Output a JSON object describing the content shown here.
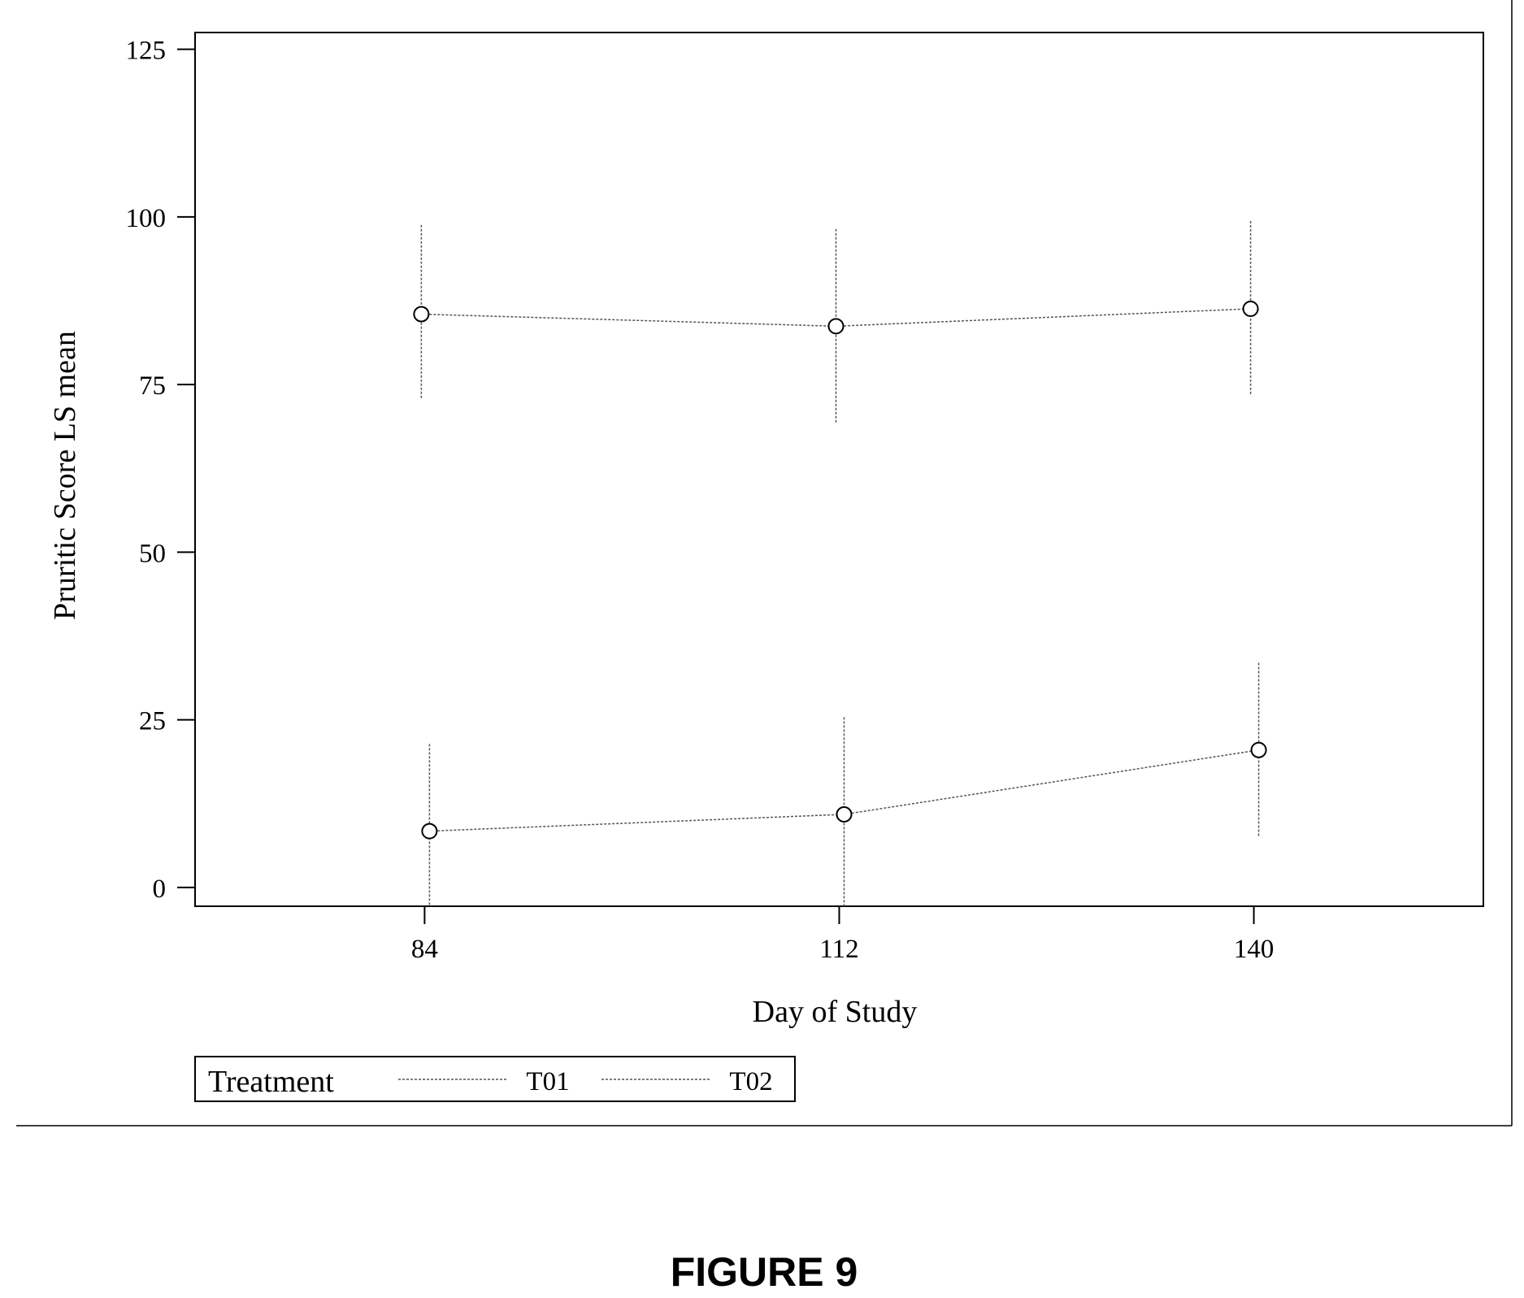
{
  "chart_data": {
    "type": "line",
    "figure_caption": "FIGURE 9",
    "xlabel": "Day of Study",
    "ylabel": "Pruritic Score LS mean",
    "x_ticks": [
      84,
      112,
      140
    ],
    "y_ticks": [
      0,
      25,
      50,
      75,
      100,
      125
    ],
    "xlim": [
      68.5,
      155.5
    ],
    "ylim": [
      -2.8,
      127.5
    ],
    "grid": false,
    "legend": {
      "title": "Treatment",
      "position": "bottom-left",
      "entries": [
        "T01",
        "T02"
      ]
    },
    "series": [
      {
        "name": "T01",
        "x": [
          84,
          112,
          140
        ],
        "values": [
          85.5,
          83.7,
          86.3
        ],
        "lower": [
          72.8,
          69.3,
          73.3
        ],
        "upper": [
          98.8,
          98.2,
          99.4
        ]
      },
      {
        "name": "T02",
        "x": [
          84,
          112,
          140
        ],
        "values": [
          8.4,
          10.9,
          20.5
        ],
        "lower": [
          -2.8,
          -2.8,
          7.6
        ],
        "upper": [
          21.4,
          25.4,
          33.5
        ]
      }
    ],
    "colors": {
      "line": "#555555",
      "axis": "#000000",
      "marker_fill": "#ffffff"
    }
  }
}
